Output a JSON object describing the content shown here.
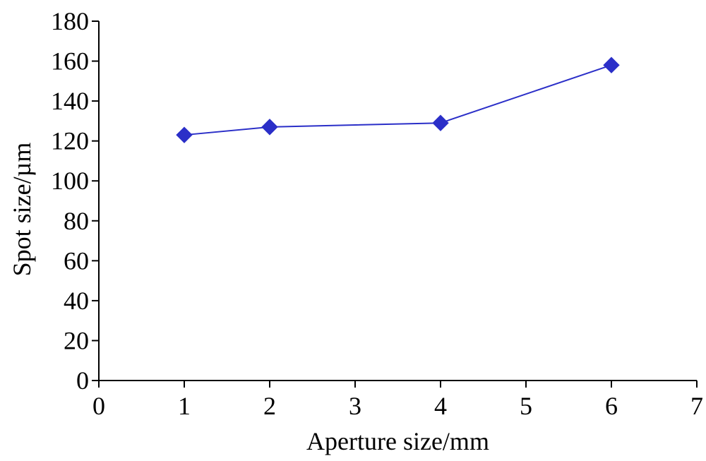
{
  "chart_data": {
    "type": "line",
    "title": "",
    "xlabel": "Aperture size/mm",
    "ylabel": "Spot size/µm",
    "xlim": [
      0,
      7
    ],
    "ylim": [
      0,
      180
    ],
    "xticks": [
      0,
      1,
      2,
      3,
      4,
      5,
      6,
      7
    ],
    "yticks": [
      0,
      20,
      40,
      60,
      80,
      100,
      120,
      140,
      160,
      180
    ],
    "grid": false,
    "legend": "none",
    "series": [
      {
        "color": "#2b2fc8",
        "marker": "diamond",
        "x": [
          1,
          2,
          4,
          6
        ],
        "y": [
          123,
          127,
          129,
          158
        ]
      }
    ]
  }
}
